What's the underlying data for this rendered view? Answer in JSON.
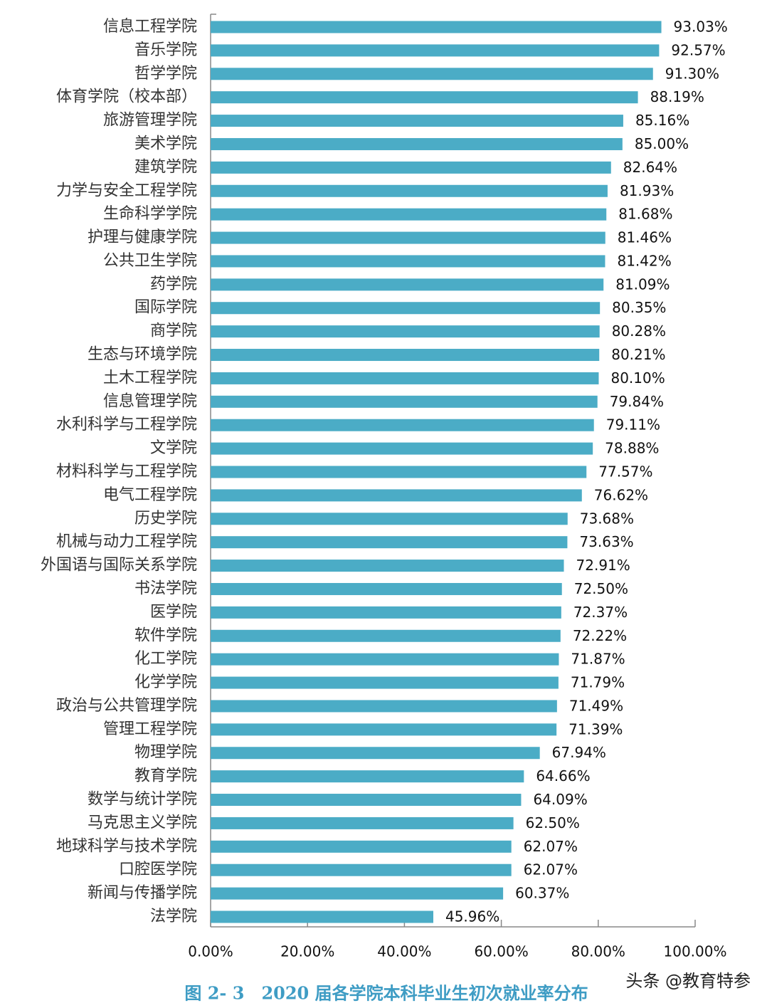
{
  "chart_data": {
    "type": "barh",
    "caption": "图 2- 3　2020 届各学院本科毕业生初次就业率分布",
    "watermark": "头条 @教育特参",
    "color": "#4bacc6",
    "categories": [
      "信息工程学院",
      "音乐学院",
      "哲学学院",
      "体育学院（校本部）",
      "旅游管理学院",
      "美术学院",
      "建筑学院",
      "力学与安全工程学院",
      "生命科学学院",
      "护理与健康学院",
      "公共卫生学院",
      "药学院",
      "国际学院",
      "商学院",
      "生态与环境学院",
      "土木工程学院",
      "信息管理学院",
      "水利科学与工程学院",
      "文学院",
      "材料科学与工程学院",
      "电气工程学院",
      "历史学院",
      "机械与动力工程学院",
      "外国语与国际关系学院",
      "书法学院",
      "医学院",
      "软件学院",
      "化工学院",
      "化学学院",
      "政治与公共管理学院",
      "管理工程学院",
      "物理学院",
      "教育学院",
      "数学与统计学院",
      "马克思主义学院",
      "地球科学与技术学院",
      "口腔医学院",
      "新闻与传播学院",
      "法学院"
    ],
    "values": [
      93.03,
      92.57,
      91.3,
      88.19,
      85.16,
      85.0,
      82.64,
      81.93,
      81.68,
      81.46,
      81.42,
      81.09,
      80.35,
      80.28,
      80.21,
      80.1,
      79.84,
      79.11,
      78.88,
      77.57,
      76.62,
      73.68,
      73.63,
      72.91,
      72.5,
      72.37,
      72.22,
      71.87,
      71.79,
      71.49,
      71.39,
      67.94,
      64.66,
      64.09,
      62.5,
      62.07,
      62.07,
      60.37,
      45.96
    ],
    "value_labels": [
      "93.03%",
      "92.57%",
      "91.30%",
      "88.19%",
      "85.16%",
      "85.00%",
      "82.64%",
      "81.93%",
      "81.68%",
      "81.46%",
      "81.42%",
      "81.09%",
      "80.35%",
      "80.28%",
      "80.21%",
      "80.10%",
      "79.84%",
      "79.11%",
      "78.88%",
      "77.57%",
      "76.62%",
      "73.68%",
      "73.63%",
      "72.91%",
      "72.50%",
      "72.37%",
      "72.22%",
      "71.87%",
      "71.79%",
      "71.49%",
      "71.39%",
      "67.94%",
      "64.66%",
      "64.09%",
      "62.50%",
      "62.07%",
      "62.07%",
      "60.37%",
      "45.96%"
    ],
    "xlim": [
      0,
      100
    ],
    "xticks": [
      {
        "value": 0,
        "label": "0.00%"
      },
      {
        "value": 20,
        "label": "20.00%"
      },
      {
        "value": 40,
        "label": "40.00%"
      },
      {
        "value": 60,
        "label": "60.00%"
      },
      {
        "value": 80,
        "label": "80.00%"
      },
      {
        "value": 100,
        "label": "100.00%"
      }
    ]
  }
}
